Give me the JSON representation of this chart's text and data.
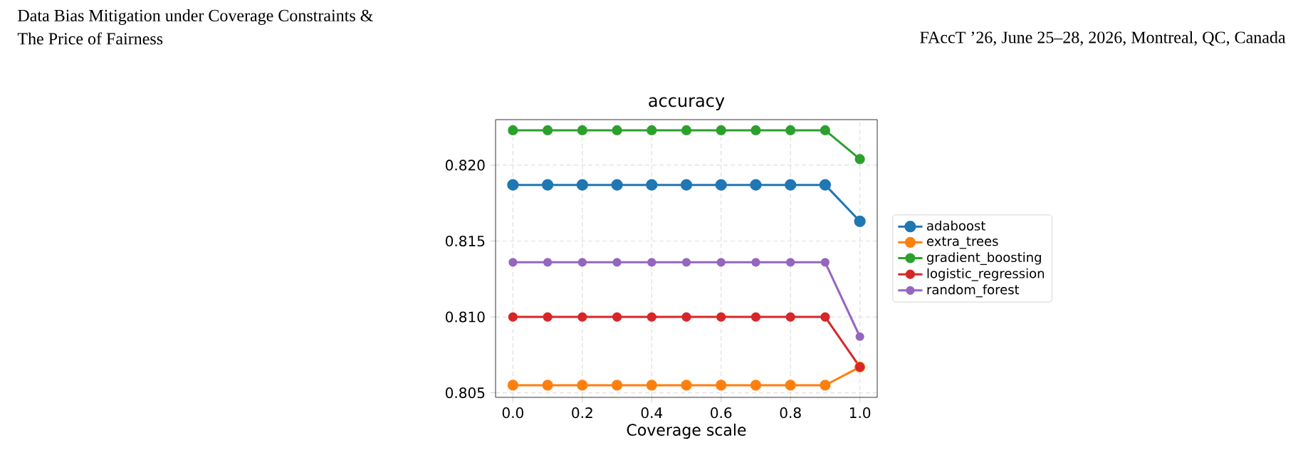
{
  "chart_data": {
    "type": "line",
    "title": "accuracy",
    "xlabel": "Coverage scale",
    "annotations": [
      "Data Bias Mitigation under Coverage Constraints &",
      "The Price of Fairness",
      "FAccT ’26, June 25–28, 2026, Montreal, QC, Canada"
    ],
    "x": [
      0,
      0.1,
      0.2,
      0.3,
      0.4,
      0.5,
      0.6,
      0.7,
      0.8,
      0.9,
      1.0
    ],
    "series": [
      {
        "name": "adaboost",
        "color": "#1f77b4",
        "values": [
          0.8187,
          0.8187,
          0.8187,
          0.8187,
          0.8187,
          0.8187,
          0.8187,
          0.8187,
          0.8187,
          0.8187,
          0.8163
        ]
      },
      {
        "name": "extra_trees",
        "color": "#ff7f0e",
        "values": [
          0.8055,
          0.8055,
          0.8055,
          0.8055,
          0.8055,
          0.8055,
          0.8055,
          0.8055,
          0.8055,
          0.8055,
          0.8067
        ]
      },
      {
        "name": "gradient_boosting",
        "color": "#2ca02c",
        "values": [
          0.8223,
          0.8223,
          0.8223,
          0.8223,
          0.8223,
          0.8223,
          0.8223,
          0.8223,
          0.8223,
          0.8223,
          0.8204
        ]
      },
      {
        "name": "logistic_regression",
        "color": "#d62728",
        "values": [
          0.81,
          0.81,
          0.81,
          0.81,
          0.81,
          0.81,
          0.81,
          0.81,
          0.81,
          0.81,
          0.8067
        ]
      },
      {
        "name": "random_forest",
        "color": "#9467bd",
        "values": [
          0.8136,
          0.8136,
          0.8136,
          0.8136,
          0.8136,
          0.8136,
          0.8136,
          0.8136,
          0.8136,
          0.8136,
          0.8087
        ]
      }
    ],
    "xlim": [
      -0.05,
      1.05
    ],
    "ylim": [
      0.8047,
      0.823
    ],
    "xticks": [
      {
        "value": 0,
        "label": "0.0"
      },
      {
        "value": 0.2,
        "label": "0.2"
      },
      {
        "value": 0.4,
        "label": "0.4"
      },
      {
        "value": 0.6,
        "label": "0.6"
      },
      {
        "value": 0.8,
        "label": "0.8"
      },
      {
        "value": 1.0,
        "label": "1.0"
      }
    ],
    "yticks": [
      0.805,
      {
        "value": 0.81,
        "label": "0.810"
      },
      0.815,
      {
        "value": 0.82,
        "label": "0.820"
      }
    ],
    "grid": true,
    "legend": "right",
    "marker": "circle",
    "line_style": "solid"
  }
}
